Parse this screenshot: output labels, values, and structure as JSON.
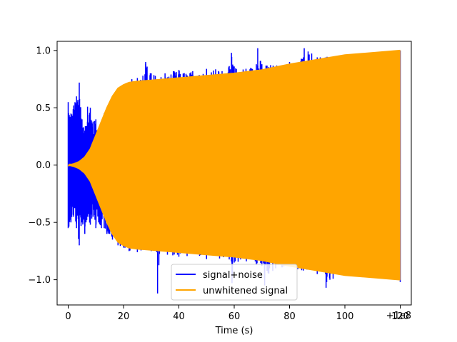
{
  "chart_data": {
    "type": "line",
    "title": "",
    "xlabel": "Time (s)",
    "ylabel": "",
    "x_offset_label": "+1e8",
    "xlim": [
      -4,
      124
    ],
    "ylim": [
      -1.22,
      1.08
    ],
    "x_ticks": [
      0,
      20,
      40,
      60,
      80,
      100,
      120
    ],
    "x_tick_labels": [
      "0",
      "20",
      "40",
      "60",
      "80",
      "100",
      "120"
    ],
    "y_ticks": [
      -1.0,
      -0.5,
      0.0,
      0.5,
      1.0
    ],
    "y_tick_labels": [
      "−1.0",
      "−0.5",
      "0.0",
      "0.5",
      "1.0"
    ],
    "grid": false,
    "legend_position": "bottom-center",
    "series": [
      {
        "name": "signal+noise",
        "color": "#0000ff",
        "envelope_upper": [
          [
            0,
            0.55
          ],
          [
            1,
            0.45
          ],
          [
            2,
            0.52
          ],
          [
            3,
            0.6
          ],
          [
            4,
            0.72
          ],
          [
            5,
            0.4
          ],
          [
            6,
            0.3
          ],
          [
            7,
            0.51
          ],
          [
            8,
            0.5
          ],
          [
            9,
            0.38
          ],
          [
            10,
            0.4
          ],
          [
            11,
            0.3
          ],
          [
            12,
            0.35
          ],
          [
            13,
            0.45
          ],
          [
            14,
            0.35
          ],
          [
            15,
            0.5
          ],
          [
            16,
            0.35
          ],
          [
            17,
            0.5
          ],
          [
            18,
            0.55
          ],
          [
            19,
            0.6
          ],
          [
            20,
            0.65
          ],
          [
            21,
            0.7
          ],
          [
            23,
            0.75
          ],
          [
            25,
            0.76
          ],
          [
            27,
            0.78
          ],
          [
            28,
            0.9
          ],
          [
            30,
            0.8
          ],
          [
            35,
            0.8
          ],
          [
            38,
            0.82
          ],
          [
            40,
            0.83
          ],
          [
            45,
            0.82
          ],
          [
            50,
            0.84
          ],
          [
            58,
            0.85
          ],
          [
            59,
            0.98
          ],
          [
            60,
            0.86
          ],
          [
            68,
            0.88
          ],
          [
            68.5,
            1.02
          ],
          [
            70,
            0.88
          ],
          [
            80,
            0.9
          ],
          [
            85,
            0.94
          ],
          [
            85.3,
            1.02
          ],
          [
            90,
            0.94
          ],
          [
            100,
            0.96
          ],
          [
            105,
            0.97
          ],
          [
            110,
            0.98
          ],
          [
            120,
            1.0
          ]
        ],
        "envelope_lower": [
          [
            0,
            -0.55
          ],
          [
            1,
            -0.5
          ],
          [
            2,
            -0.45
          ],
          [
            3,
            -0.55
          ],
          [
            4,
            -0.7
          ],
          [
            5,
            -0.5
          ],
          [
            6,
            -0.6
          ],
          [
            7,
            -0.45
          ],
          [
            8,
            -0.52
          ],
          [
            9,
            -0.45
          ],
          [
            10,
            -0.55
          ],
          [
            11,
            -0.5
          ],
          [
            12,
            -0.55
          ],
          [
            13,
            -0.55
          ],
          [
            14,
            -0.6
          ],
          [
            15,
            -0.6
          ],
          [
            16,
            -0.65
          ],
          [
            17,
            -0.62
          ],
          [
            18,
            -0.7
          ],
          [
            20,
            -0.72
          ],
          [
            22,
            -0.75
          ],
          [
            25,
            -0.76
          ],
          [
            30,
            -0.75
          ],
          [
            32,
            -0.76
          ],
          [
            32.3,
            -1.12
          ],
          [
            33,
            -0.77
          ],
          [
            40,
            -0.8
          ],
          [
            50,
            -0.82
          ],
          [
            59,
            -0.84
          ],
          [
            59.2,
            -1.03
          ],
          [
            60,
            -0.85
          ],
          [
            68,
            -0.87
          ],
          [
            70,
            -0.88
          ],
          [
            71,
            -1.05
          ],
          [
            75,
            -0.9
          ],
          [
            85,
            -0.92
          ],
          [
            90,
            -0.95
          ],
          [
            93,
            -0.95
          ],
          [
            93.2,
            -1.07
          ],
          [
            100,
            -0.96
          ],
          [
            110,
            -0.98
          ],
          [
            120,
            -1.02
          ]
        ]
      },
      {
        "name": "unwhitened signal",
        "color": "#ffa500",
        "envelope_upper": [
          [
            0,
            0.0
          ],
          [
            2,
            0.01
          ],
          [
            4,
            0.03
          ],
          [
            6,
            0.07
          ],
          [
            8,
            0.14
          ],
          [
            10,
            0.26
          ],
          [
            12,
            0.38
          ],
          [
            14,
            0.5
          ],
          [
            16,
            0.6
          ],
          [
            18,
            0.67
          ],
          [
            20,
            0.7
          ],
          [
            22,
            0.72
          ],
          [
            25,
            0.73
          ],
          [
            30,
            0.74
          ],
          [
            40,
            0.76
          ],
          [
            50,
            0.78
          ],
          [
            60,
            0.8
          ],
          [
            70,
            0.83
          ],
          [
            80,
            0.88
          ],
          [
            90,
            0.92
          ],
          [
            100,
            0.96
          ],
          [
            110,
            0.98
          ],
          [
            120,
            1.0
          ]
        ],
        "envelope_lower": [
          [
            0,
            0.0
          ],
          [
            2,
            -0.01
          ],
          [
            4,
            -0.03
          ],
          [
            6,
            -0.07
          ],
          [
            8,
            -0.14
          ],
          [
            10,
            -0.26
          ],
          [
            12,
            -0.38
          ],
          [
            14,
            -0.5
          ],
          [
            16,
            -0.6
          ],
          [
            18,
            -0.67
          ],
          [
            20,
            -0.7
          ],
          [
            22,
            -0.72
          ],
          [
            25,
            -0.73
          ],
          [
            30,
            -0.74
          ],
          [
            40,
            -0.76
          ],
          [
            50,
            -0.78
          ],
          [
            60,
            -0.8
          ],
          [
            70,
            -0.83
          ],
          [
            80,
            -0.88
          ],
          [
            90,
            -0.92
          ],
          [
            100,
            -0.96
          ],
          [
            110,
            -0.98
          ],
          [
            120,
            -1.0
          ]
        ]
      }
    ]
  }
}
